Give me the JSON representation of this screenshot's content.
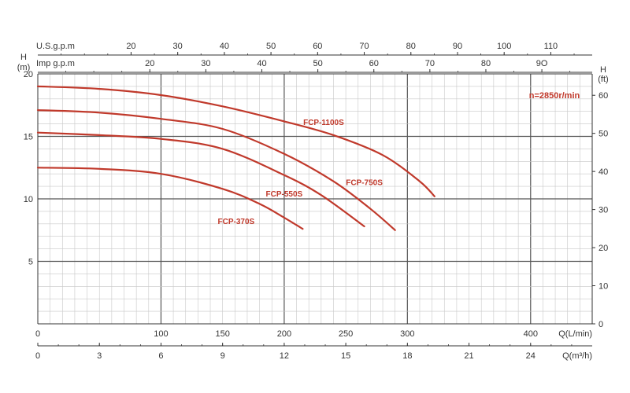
{
  "chart_data": {
    "type": "line",
    "x_units": "L/min",
    "y_units": "m",
    "xlim": [
      0,
      450
    ],
    "ylim": [
      0,
      20
    ],
    "grid": true,
    "series": [
      {
        "name": "FCP-1100S",
        "x": [
          0,
          50,
          100,
          150,
          200,
          240,
          280,
          310,
          322
        ],
        "y": [
          19.0,
          18.8,
          18.3,
          17.4,
          16.2,
          15.1,
          13.5,
          11.4,
          10.2
        ]
      },
      {
        "name": "FCP-750S",
        "x": [
          0,
          50,
          100,
          150,
          200,
          240,
          270,
          290
        ],
        "y": [
          17.1,
          16.9,
          16.4,
          15.6,
          13.6,
          11.4,
          9.2,
          7.5
        ]
      },
      {
        "name": "FCP-550S",
        "x": [
          0,
          50,
          100,
          150,
          200,
          230,
          265
        ],
        "y": [
          15.3,
          15.1,
          14.8,
          14.0,
          11.9,
          10.3,
          7.8
        ]
      },
      {
        "name": "FCP-370S",
        "x": [
          0,
          50,
          100,
          150,
          180,
          200,
          215
        ],
        "y": [
          12.5,
          12.4,
          12.0,
          10.8,
          9.6,
          8.5,
          7.6
        ]
      }
    ],
    "series_labels": [
      "FCP-1100S",
      "FCP-750S",
      "FCP-550S",
      "FCP-370S"
    ],
    "y_left_label_top": "H",
    "y_left_label_unit": "(m)",
    "y_left_ticks": [
      5,
      10,
      15,
      20
    ],
    "y_right_label_top": "H",
    "y_right_label_unit": "(ft)",
    "y_right_ticks": [
      0,
      10,
      20,
      30,
      40,
      50,
      60
    ],
    "x_bottom1_label": "Q(L/min)",
    "x_bottom1_ticks": [
      0,
      100,
      150,
      200,
      250,
      300,
      400
    ],
    "x_bottom2_label": "Q(m³/h)",
    "x_bottom2_ticks": [
      0,
      3,
      6,
      9,
      12,
      15,
      18,
      21,
      24
    ],
    "x_top1_label": "U.S.g.p.m",
    "x_top1_ticks": [
      "20",
      "30",
      "40",
      "50",
      "60",
      "70",
      "80",
      "90",
      "100",
      "110"
    ],
    "x_top2_label": "Imp g.p.m",
    "x_top2_ticks": [
      "20",
      "30",
      "40",
      "50",
      "60",
      "70",
      "80",
      "9O"
    ],
    "annotation": "n=2850r/min",
    "line_color": "#c0392b"
  }
}
